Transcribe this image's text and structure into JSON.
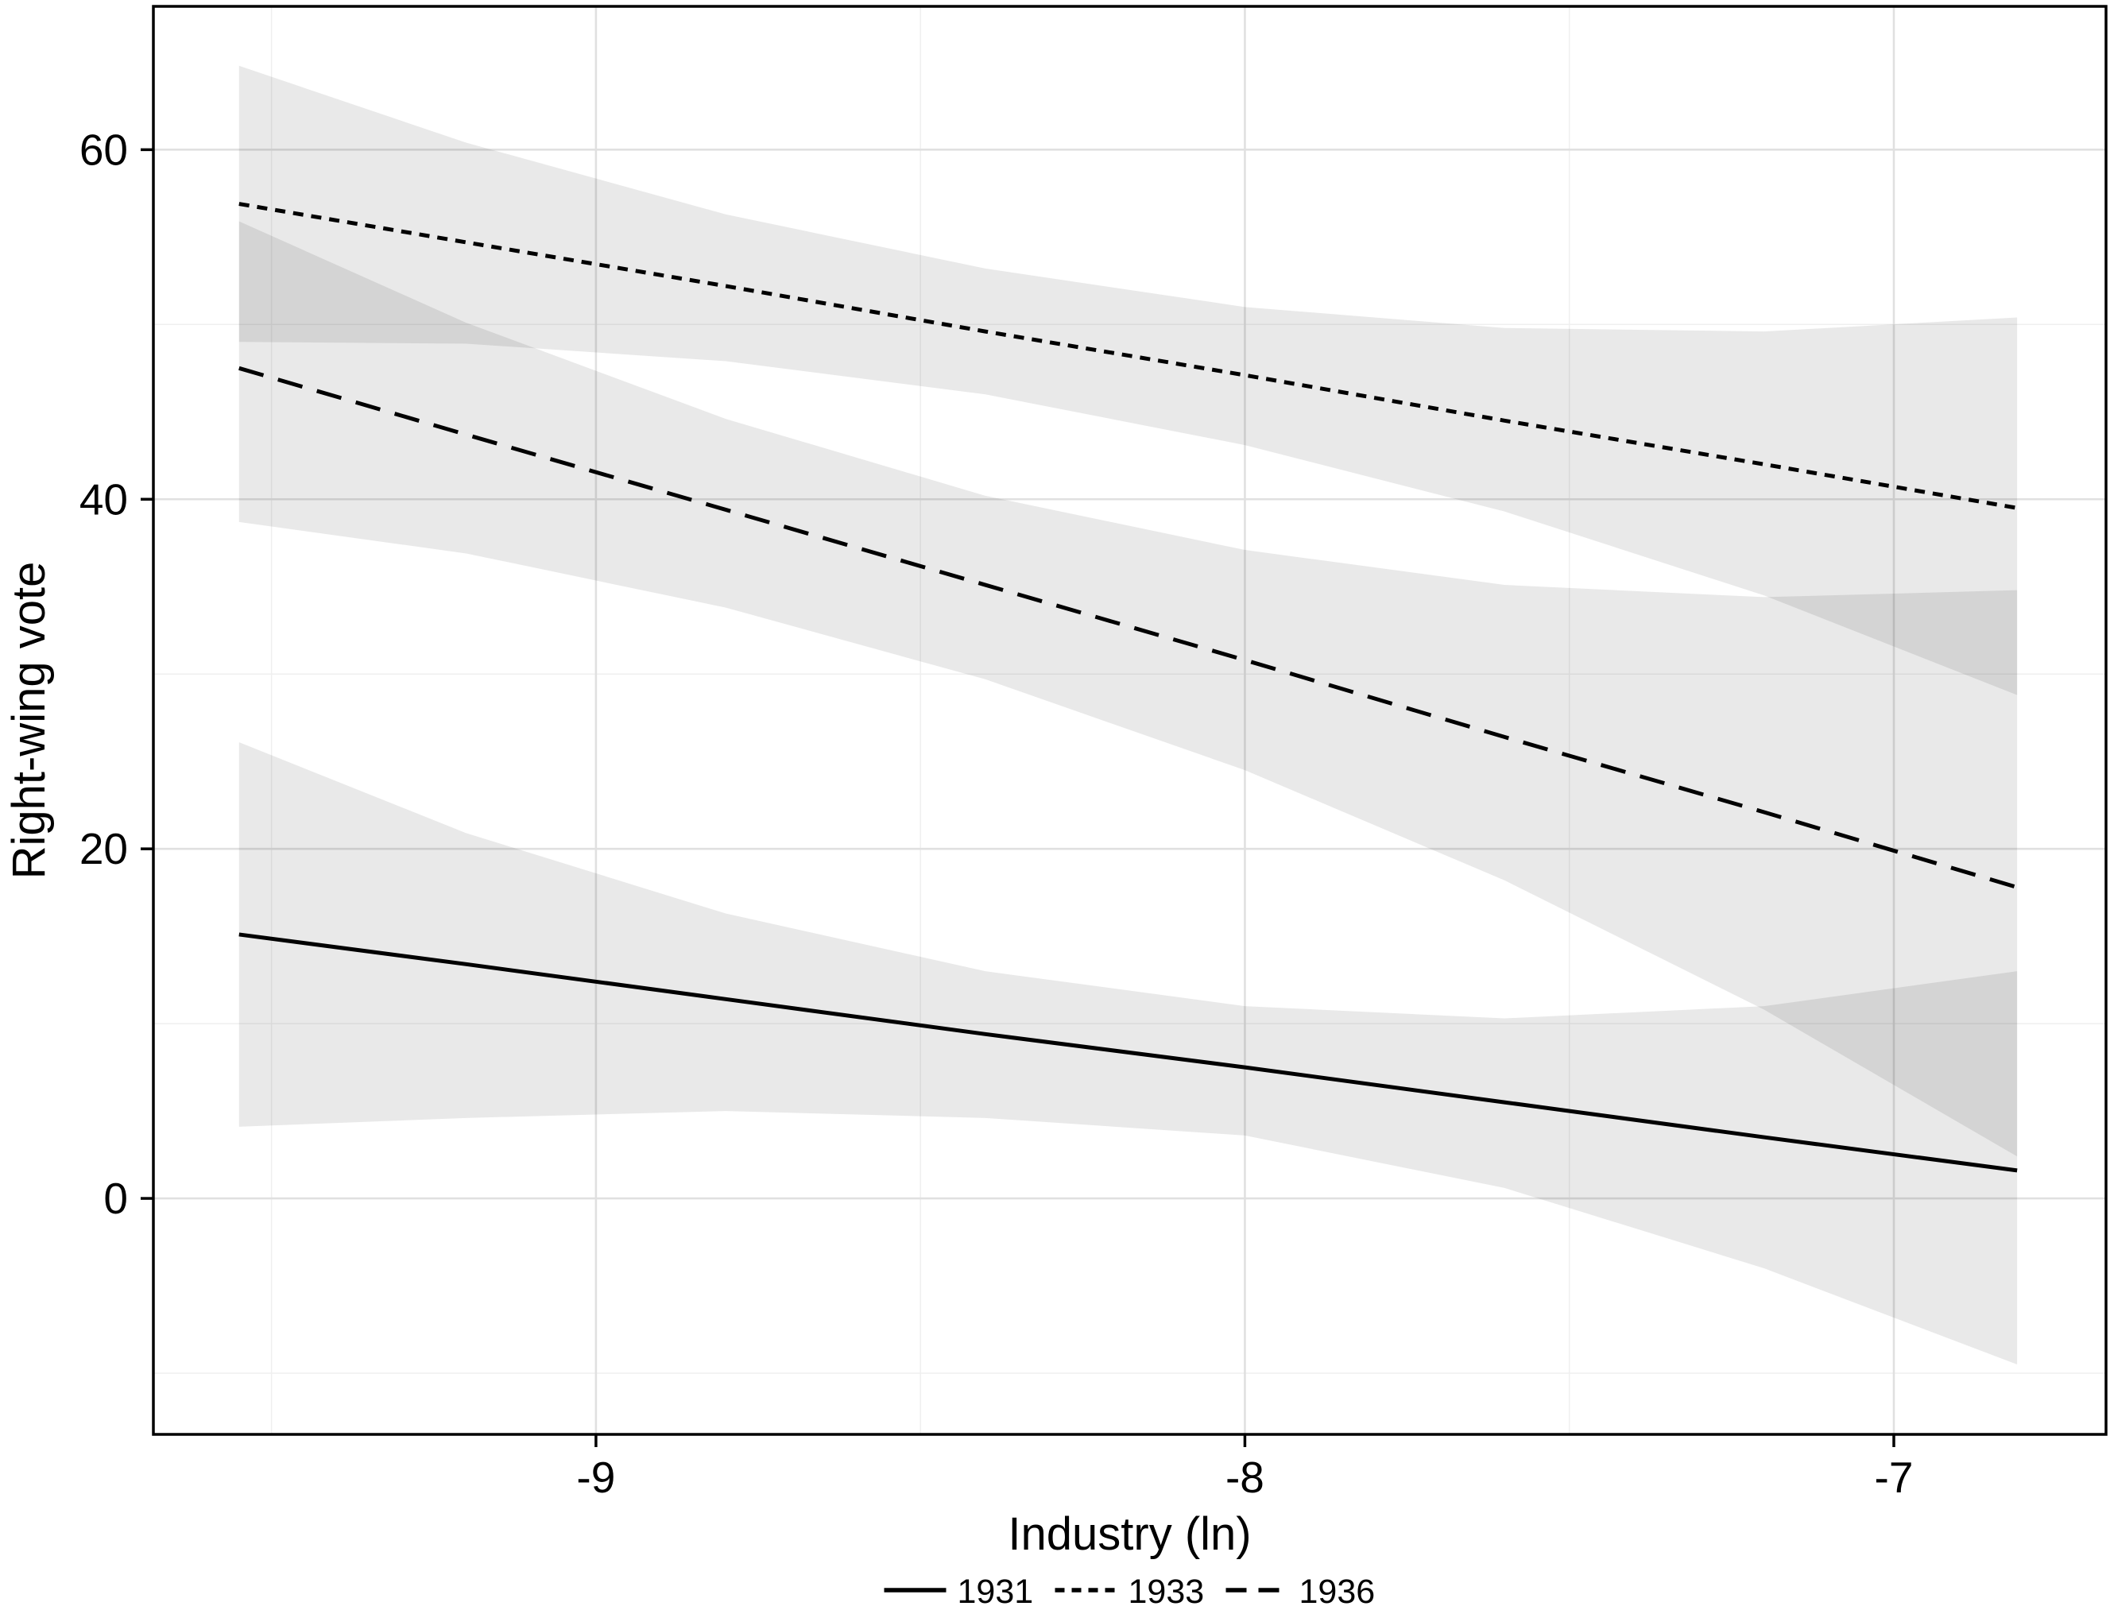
{
  "figure": {
    "background": "#ffffff"
  },
  "chart_data": {
    "type": "line",
    "title": "",
    "xlabel": "Industry (ln)",
    "ylabel": "Right-wing vote",
    "xlim": [
      -9.682,
      -6.673
    ],
    "ylim": [
      -13.5,
      68.2
    ],
    "x_ticks": {
      "values": [
        -9,
        -8,
        -7
      ],
      "labels": [
        "-9",
        "-8",
        "-7"
      ]
    },
    "y_ticks": {
      "values": [
        0,
        20,
        40,
        60
      ],
      "labels": [
        "0",
        "20",
        "40",
        "60"
      ]
    },
    "x_minor_gridlines": [
      -9.5,
      -8.5,
      -7.5
    ],
    "y_minor_gridlines": [
      -10,
      10,
      30,
      50
    ],
    "grid": true,
    "legend_position": "bottom-center",
    "x": [
      -9.55,
      -9.2,
      -8.8,
      -8.4,
      -8.0,
      -7.6,
      -7.2,
      -6.81
    ],
    "series": [
      {
        "name": "1931",
        "linestyle": "solid",
        "y": [
          15.1,
          13.4,
          11.4,
          9.4,
          7.5,
          5.5,
          3.5,
          1.6
        ],
        "ci_upper": [
          26.1,
          20.9,
          16.3,
          13.0,
          11.0,
          10.3,
          11.0,
          13.0
        ],
        "ci_lower": [
          4.1,
          4.6,
          5.0,
          4.6,
          3.6,
          0.6,
          -4.0,
          -9.5
        ]
      },
      {
        "name": "1933",
        "linestyle": "dotted",
        "y": [
          56.9,
          54.7,
          52.2,
          49.6,
          47.1,
          44.5,
          42.0,
          39.5
        ],
        "ci_upper": [
          64.8,
          60.4,
          56.3,
          53.2,
          51.0,
          49.8,
          49.6,
          50.4
        ],
        "ci_lower": [
          49.0,
          48.9,
          47.9,
          46.0,
          43.1,
          39.3,
          34.5,
          28.8
        ]
      },
      {
        "name": "1936",
        "linestyle": "dashed",
        "y": [
          47.5,
          43.7,
          39.4,
          35.1,
          30.8,
          26.4,
          22.1,
          17.8
        ],
        "ci_upper": [
          55.9,
          50.1,
          44.6,
          40.2,
          37.1,
          35.1,
          34.4,
          34.8
        ],
        "ci_lower": [
          38.7,
          36.9,
          33.8,
          29.7,
          24.5,
          18.2,
          10.8,
          2.4
        ]
      }
    ]
  },
  "legend": {
    "items": [
      {
        "label": "1931",
        "linestyle": "solid"
      },
      {
        "label": "1933",
        "linestyle": "dotted"
      },
      {
        "label": "1936",
        "linestyle": "dashed"
      }
    ]
  },
  "colors": {
    "line": "#000000",
    "ribbon_fill": "rgba(0,0,0,0.088)",
    "grid_major": "#e0e0e0",
    "grid_minor": "#efefef",
    "axis": "#000000",
    "text": "#000000",
    "panel_background": "#ffffff"
  }
}
